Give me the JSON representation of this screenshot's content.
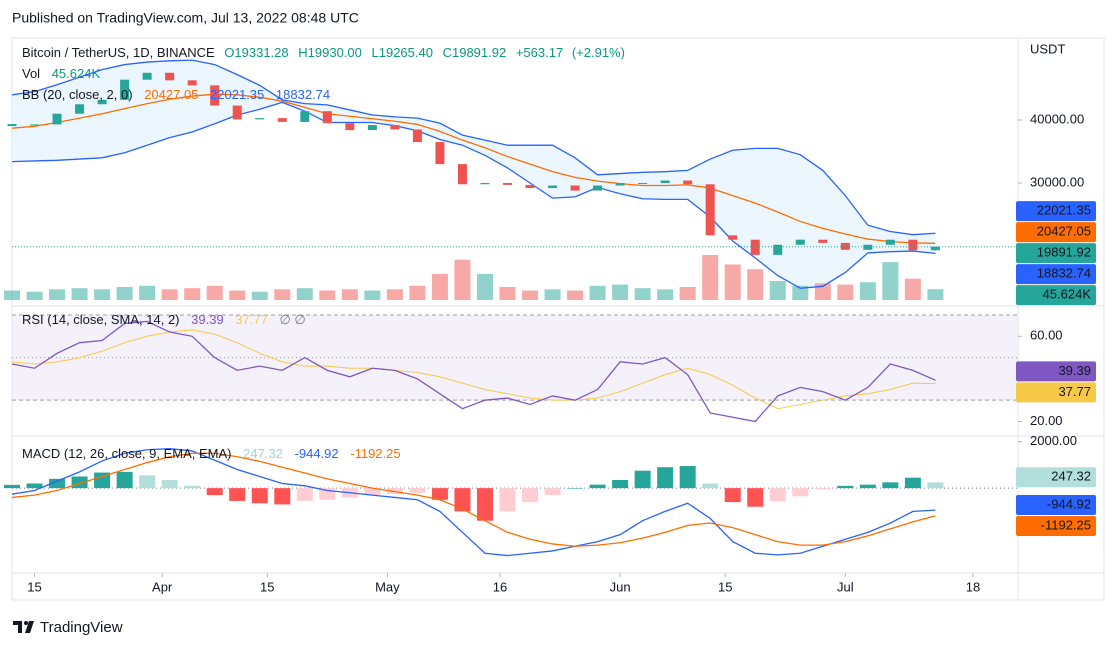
{
  "header": {
    "published": "Published on TradingView.com, Jul 13, 2022 08:48 UTC"
  },
  "footer": {
    "brand": "TradingView"
  },
  "chart_data": [
    {
      "type": "candlestick",
      "title": "Bitcoin / TetherUS, 1D, BINANCE",
      "currency": "USDT",
      "ohlc": [
        19331.28,
        19930,
        19265.4,
        19891.92
      ],
      "ohlc_labels": [
        "O19331.28",
        "H19930.00",
        "L19265.40",
        "C19891.92"
      ],
      "change": [
        563.17,
        2.91
      ],
      "change_labels": [
        "+563.17",
        "(+2.91%)"
      ],
      "up_color": "#26a69a",
      "down_color": "#ef5350",
      "x": [
        0,
        3,
        6,
        9,
        12,
        15,
        18,
        21,
        24,
        27,
        30,
        33,
        36,
        39,
        42,
        45,
        48,
        51,
        54,
        57,
        60,
        63,
        66,
        69,
        72,
        75,
        78,
        81,
        84,
        87,
        90,
        93,
        96,
        99,
        102,
        105,
        108,
        111,
        114,
        117,
        120,
        123
      ],
      "xlim": [
        0,
        134
      ],
      "xticks": [
        {
          "value": 3,
          "label": "15"
        },
        {
          "value": 20,
          "label": "Apr"
        },
        {
          "value": 34,
          "label": "15"
        },
        {
          "value": 50,
          "label": "May"
        },
        {
          "value": 65,
          "label": "16"
        },
        {
          "value": 81,
          "label": "Jun"
        },
        {
          "value": 95,
          "label": "15"
        },
        {
          "value": 111,
          "label": "Jul"
        },
        {
          "value": 128,
          "label": "18"
        }
      ],
      "ylim": [
        11430,
        52700
      ],
      "yticks": [
        {
          "value": 30000,
          "label": "30000.00"
        },
        {
          "value": 40000,
          "label": "40000.00"
        }
      ],
      "close": [
        39200,
        39300,
        41000,
        42500,
        43200,
        46400,
        47500,
        46300,
        45500,
        42300,
        40100,
        40300,
        39700,
        41400,
        39500,
        38400,
        39200,
        38500,
        36500,
        33000,
        29800,
        30000,
        29700,
        29200,
        29600,
        28800,
        29600,
        30000,
        30000,
        30400,
        29800,
        21700,
        21000,
        18600,
        20200,
        21000,
        20500,
        19400,
        20200,
        21000,
        19331.28,
        19891.92
      ],
      "volume": {
        "name": "Vol",
        "last_label": "45.624K",
        "values": [
          40,
          35,
          45,
          50,
          45,
          55,
          60,
          45,
          50,
          60,
          40,
          35,
          45,
          50,
          40,
          45,
          40,
          45,
          60,
          110,
          170,
          110,
          55,
          40,
          45,
          40,
          60,
          65,
          50,
          45,
          55,
          190,
          150,
          130,
          80,
          60,
          70,
          65,
          75,
          160,
          90,
          45.624
        ]
      },
      "bollinger": {
        "name": "BB (20, close, 2, 0)",
        "fill": "#e3f2fd",
        "basis": {
          "color": "#ff6d00",
          "values": [
            38700,
            39000,
            39600,
            40300,
            41000,
            41800,
            42600,
            43300,
            43800,
            44100,
            44000,
            43600,
            43000,
            42000,
            41000,
            40600,
            40200,
            39800,
            39300,
            38200,
            36800,
            35600,
            34200,
            33000,
            31800,
            30900,
            30300,
            29900,
            29600,
            29600,
            29700,
            29200,
            28000,
            26800,
            25400,
            23900,
            22800,
            21900,
            21100,
            20700,
            20500,
            20427.05
          ]
        },
        "upper": {
          "color": "#2962ff",
          "values": [
            44000,
            44500,
            45600,
            46800,
            48000,
            48800,
            49200,
            49400,
            49500,
            48800,
            47200,
            45500,
            43200,
            42600,
            42400,
            41600,
            40800,
            40500,
            40300,
            39500,
            37600,
            36800,
            36000,
            36000,
            36000,
            34000,
            31300,
            31500,
            31700,
            31800,
            32000,
            33800,
            35200,
            35500,
            35500,
            34500,
            32000,
            28000,
            23300,
            22300,
            21800,
            22021.35
          ]
        },
        "lower": {
          "color": "#2962ff",
          "values": [
            33400,
            33500,
            33600,
            33800,
            34000,
            34800,
            36000,
            37200,
            38100,
            39400,
            40800,
            41700,
            42800,
            41400,
            39600,
            39600,
            39600,
            39100,
            38300,
            36900,
            36000,
            34400,
            32400,
            30000,
            27600,
            27800,
            29300,
            28300,
            27500,
            27400,
            27400,
            24600,
            20800,
            18100,
            15300,
            13300,
            13600,
            15800,
            18900,
            19100,
            19200,
            18832.74
          ]
        }
      }
    },
    {
      "type": "rsi",
      "name": "RSI (14, close, SMA, 14, 2)",
      "empty_marks": "∅ ∅",
      "x": [
        0,
        3,
        6,
        9,
        12,
        15,
        18,
        21,
        24,
        27,
        30,
        33,
        36,
        39,
        42,
        45,
        48,
        51,
        54,
        57,
        60,
        63,
        66,
        69,
        72,
        75,
        78,
        81,
        84,
        87,
        90,
        93,
        96,
        99,
        102,
        105,
        108,
        111,
        114,
        117,
        120,
        123
      ],
      "ylim": [
        16,
        70
      ],
      "yticks": [
        {
          "value": 20,
          "label": "20.00"
        },
        {
          "value": 60,
          "label": "60.00"
        }
      ],
      "bands": [
        30,
        50,
        70
      ],
      "band_color": "#ede7f6",
      "series": [
        {
          "color": "#7e57c2",
          "values": [
            47,
            45,
            52,
            57,
            58,
            66,
            67,
            62,
            60,
            50,
            44,
            46,
            44,
            50,
            44,
            41,
            45,
            44,
            40,
            33,
            26,
            30,
            31,
            28,
            32,
            30,
            35,
            48,
            47,
            50,
            42,
            24,
            22,
            20,
            32,
            36,
            34,
            30,
            36,
            47,
            44,
            39.39
          ]
        },
        {
          "color": "#f7c948",
          "values": [
            48,
            47,
            48,
            50,
            53,
            57,
            60,
            62,
            63,
            61,
            57,
            52,
            48,
            46,
            46,
            45,
            45,
            44,
            43,
            41,
            38,
            35,
            33,
            31,
            30,
            30,
            31,
            34,
            38,
            42,
            45,
            42,
            37,
            31,
            26,
            28,
            30,
            32,
            33,
            35,
            38,
            37.77
          ]
        }
      ]
    },
    {
      "type": "macd",
      "name": "MACD (12, 26, close, 9, EMA, EMA)",
      "x": [
        0,
        3,
        6,
        9,
        12,
        15,
        18,
        21,
        24,
        27,
        30,
        33,
        36,
        39,
        42,
        45,
        48,
        51,
        54,
        57,
        60,
        63,
        66,
        69,
        72,
        75,
        78,
        81,
        84,
        87,
        90,
        93,
        96,
        99,
        102,
        105,
        108,
        111,
        114,
        117,
        120,
        123
      ],
      "ylim": [
        -3520,
        2070
      ],
      "yticks": [
        {
          "value": 2000,
          "label": "2000.00"
        }
      ],
      "histogram": {
        "color": "#26a69a",
        "values": [
          140,
          200,
          400,
          500,
          670,
          700,
          550,
          350,
          100,
          -300,
          -550,
          -650,
          -700,
          -550,
          -500,
          -400,
          -300,
          -250,
          -200,
          -500,
          -1000,
          -1400,
          -1000,
          -600,
          -300,
          0,
          150,
          350,
          750,
          900,
          950,
          200,
          -600,
          -800,
          -570,
          -350,
          -50,
          100,
          150,
          250,
          450,
          247.32
        ]
      },
      "series": [
        {
          "color": "#2962ff",
          "values": [
            -260,
            -100,
            300,
            700,
            1170,
            1500,
            1650,
            1700,
            1600,
            1200,
            800,
            500,
            200,
            100,
            -100,
            -200,
            -300,
            -400,
            -500,
            -1000,
            -1900,
            -2800,
            -2900,
            -2800,
            -2700,
            -2500,
            -2300,
            -2000,
            -1400,
            -1000,
            -650,
            -1300,
            -2300,
            -2800,
            -2870,
            -2800,
            -2500,
            -2200,
            -1900,
            -1500,
            -1000,
            -944.92
          ]
        },
        {
          "color": "#ff6d00",
          "values": [
            -400,
            -300,
            -100,
            200,
            500,
            800,
            1100,
            1350,
            1500,
            1500,
            1350,
            1150,
            900,
            650,
            400,
            200,
            0,
            -150,
            -300,
            -500,
            -900,
            -1400,
            -1900,
            -2200,
            -2400,
            -2500,
            -2450,
            -2350,
            -2150,
            -1900,
            -1600,
            -1500,
            -1700,
            -2000,
            -2300,
            -2450,
            -2450,
            -2300,
            -2050,
            -1750,
            -1450,
            -1192.25
          ]
        }
      ]
    }
  ]
}
